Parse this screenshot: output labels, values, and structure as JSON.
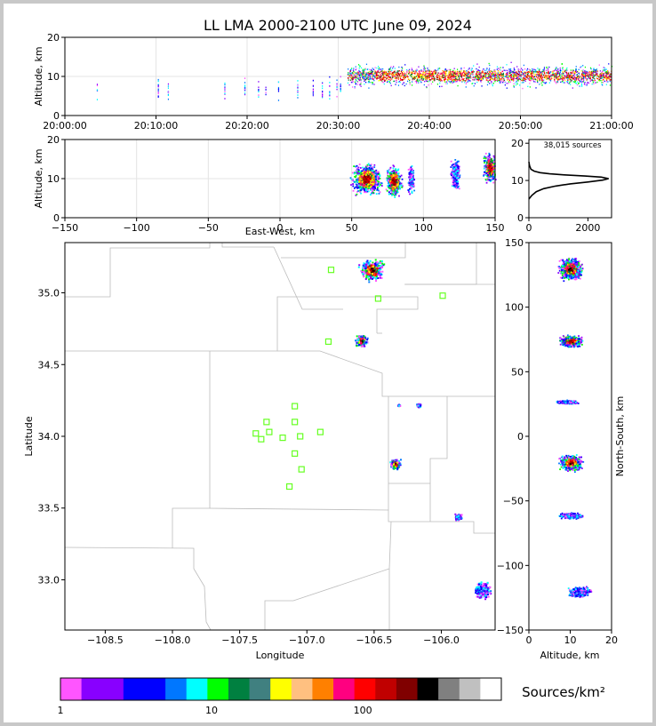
{
  "title": "LL LMA 2000-2100 UTC June 09, 2024",
  "chart_data": [
    {
      "name": "time-altitude",
      "type": "scatter",
      "ylabel": "Altitude, km",
      "ylim": [
        0,
        20
      ],
      "yticks": [
        "0",
        "10",
        "20"
      ],
      "xticks": [
        "20:00:00",
        "20:10:00",
        "20:20:00",
        "20:30:00",
        "20:40:00",
        "20:50:00",
        "21:00:00"
      ],
      "xlim_minutes": [
        0,
        60
      ],
      "bursts_minutes": [
        3.5,
        10.2,
        11.3,
        17.5,
        19.7,
        21.2,
        22.0,
        23.4,
        25.5,
        27.2,
        28.2,
        29.0,
        29.8,
        30.2
      ],
      "main_activity_minutes": [
        31,
        60
      ],
      "grid": true
    },
    {
      "name": "east-west-altitude",
      "type": "scatter",
      "xlabel": "East-West, km",
      "ylabel": "Altitude, km",
      "xlim": [
        -150,
        150
      ],
      "ylim": [
        0,
        20
      ],
      "xticks": [
        "−150",
        "−100",
        "−50",
        "0",
        "50",
        "100",
        "150"
      ],
      "yticks": [
        "0",
        "10",
        "20"
      ],
      "clusters": [
        {
          "x": 60,
          "z": 10,
          "w": 20
        },
        {
          "x": 79,
          "z": 9.5,
          "w": 11
        },
        {
          "x": 91,
          "z": 10,
          "w": 4
        },
        {
          "x": 122,
          "z": 11,
          "w": 6
        },
        {
          "x": 146,
          "z": 13,
          "w": 9
        }
      ],
      "grid": true
    },
    {
      "name": "altitude-histogram",
      "type": "line",
      "annotation": "38,015 sources",
      "xlim": [
        0,
        2800
      ],
      "ylim": [
        0,
        21
      ],
      "xticks": [
        "0",
        "2000"
      ],
      "yticks": [
        "0",
        "10",
        "20"
      ],
      "profile": [
        [
          0,
          5
        ],
        [
          100,
          6
        ],
        [
          250,
          7
        ],
        [
          500,
          7.8
        ],
        [
          900,
          8.5
        ],
        [
          1400,
          9.1
        ],
        [
          2000,
          9.6
        ],
        [
          2500,
          10.1
        ],
        [
          2700,
          10.5
        ],
        [
          2450,
          10.9
        ],
        [
          1900,
          11.2
        ],
        [
          1200,
          11.5
        ],
        [
          700,
          11.8
        ],
        [
          380,
          12.1
        ],
        [
          180,
          12.5
        ],
        [
          70,
          13.0
        ],
        [
          20,
          14.0
        ],
        [
          0,
          15
        ]
      ]
    },
    {
      "name": "plan-view",
      "type": "scatter",
      "xlabel": "Longitude",
      "ylabel": "Latitude",
      "xlim": [
        -108.8,
        -105.6
      ],
      "ylim": [
        32.65,
        35.35
      ],
      "xticks": [
        "−108.5",
        "−108.0",
        "−107.5",
        "−107.0",
        "−106.5",
        "−106.0"
      ],
      "yticks": [
        "33.0",
        "33.5",
        "34.0",
        "34.5",
        "35.0"
      ],
      "stations": [
        [
          -106.82,
          35.16
        ],
        [
          -106.47,
          34.96
        ],
        [
          -105.99,
          34.98
        ],
        [
          -106.84,
          34.66
        ],
        [
          -107.09,
          34.21
        ],
        [
          -107.3,
          34.1
        ],
        [
          -107.09,
          34.1
        ],
        [
          -107.28,
          34.03
        ],
        [
          -107.38,
          34.02
        ],
        [
          -106.9,
          34.03
        ],
        [
          -107.34,
          33.98
        ],
        [
          -107.18,
          33.99
        ],
        [
          -107.05,
          34.0
        ],
        [
          -107.09,
          33.88
        ],
        [
          -107.04,
          33.77
        ],
        [
          -107.13,
          33.65
        ]
      ],
      "clusters": [
        {
          "lon": -106.52,
          "lat": 35.16,
          "r": 0.11,
          "colored": true
        },
        {
          "lon": -106.6,
          "lat": 34.67,
          "r": 0.06,
          "colored": true
        },
        {
          "lon": -106.35,
          "lat": 33.81,
          "r": 0.05,
          "colored": true
        },
        {
          "lon": -106.17,
          "lat": 34.22,
          "r": 0.02,
          "colored": false
        },
        {
          "lon": -106.32,
          "lat": 34.22,
          "r": 0.01,
          "colored": false
        },
        {
          "lon": -105.88,
          "lat": 33.44,
          "r": 0.03,
          "colored": false
        },
        {
          "lon": -105.7,
          "lat": 32.93,
          "r": 0.08,
          "colored": false
        }
      ]
    },
    {
      "name": "altitude-north-south",
      "type": "scatter",
      "xlabel": "Altitude, km",
      "ylabel": "North-South, km",
      "xlim": [
        0,
        20
      ],
      "ylim": [
        -150,
        150
      ],
      "xticks": [
        "0",
        "10",
        "20"
      ],
      "yticks": [
        "−150",
        "−100",
        "−50",
        "0",
        "50",
        "100",
        "150"
      ],
      "clusters": [
        {
          "z": 10,
          "y": 130,
          "h": 22,
          "colored": true
        },
        {
          "z": 10,
          "y": 74,
          "h": 12,
          "colored": true
        },
        {
          "z": 9,
          "y": 27,
          "h": 4,
          "colored": false
        },
        {
          "z": 10,
          "y": -20,
          "h": 16,
          "colored": true
        },
        {
          "z": 10,
          "y": -61,
          "h": 6,
          "colored": false
        },
        {
          "z": 12,
          "y": -120,
          "h": 10,
          "colored": false
        }
      ]
    }
  ],
  "colorbar": {
    "label": "Sources/km²",
    "ticks": [
      "1",
      "10",
      "100"
    ],
    "colors": [
      "#ff55ff",
      "#8800ff",
      "#8800ff",
      "#0000ff",
      "#0000ff",
      "#0077ff",
      "#00ffff",
      "#00ff00",
      "#008040",
      "#408080",
      "#ffff00",
      "#ffc080",
      "#ff8000",
      "#ff0080",
      "#ff0000",
      "#c00000",
      "#800000",
      "#000000",
      "#808080",
      "#c0c0c0",
      "#ffffff"
    ]
  },
  "palette": {
    "station": "#66ff22",
    "border": "#bbbbbb",
    "density": [
      "#ff55ff",
      "#8800ff",
      "#0000ff",
      "#0077ff",
      "#00ffff",
      "#00ff00",
      "#008040",
      "#ffff00",
      "#ff8000",
      "#ff0080",
      "#ff0000",
      "#c00000",
      "#800000",
      "#000000"
    ]
  }
}
